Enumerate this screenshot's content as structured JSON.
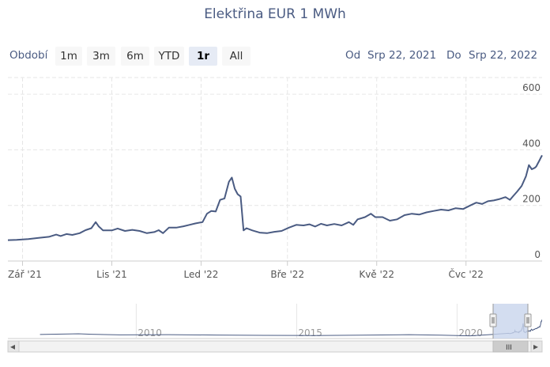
{
  "chart_data": {
    "type": "line",
    "title": "Elektřina EUR 1 MWh",
    "xlabel": "",
    "ylabel": "",
    "x_ticks": [
      "Zář '21",
      "Lis '21",
      "Led '22",
      "Bře '22",
      "Kvě '22",
      "Čvc '22"
    ],
    "y_ticks": [
      0,
      200,
      400,
      600
    ],
    "ylim": [
      0,
      660
    ],
    "xlim": [
      "2021-08-22",
      "2022-08-22"
    ],
    "grid": true,
    "series": [
      {
        "values": [
          [
            "2021-08-22",
            75
          ],
          [
            "2021-08-28",
            76
          ],
          [
            "2021-09-05",
            79
          ],
          [
            "2021-09-12",
            83
          ],
          [
            "2021-09-19",
            87
          ],
          [
            "2021-09-24",
            95
          ],
          [
            "2021-09-27",
            90
          ],
          [
            "2021-10-01",
            97
          ],
          [
            "2021-10-05",
            94
          ],
          [
            "2021-10-10",
            100
          ],
          [
            "2021-10-14",
            111
          ],
          [
            "2021-10-18",
            118
          ],
          [
            "2021-10-21",
            140
          ],
          [
            "2021-10-23",
            125
          ],
          [
            "2021-10-26",
            110
          ],
          [
            "2021-11-01",
            110
          ],
          [
            "2021-11-05",
            117
          ],
          [
            "2021-11-10",
            108
          ],
          [
            "2021-11-15",
            112
          ],
          [
            "2021-11-20",
            108
          ],
          [
            "2021-11-25",
            100
          ],
          [
            "2021-11-30",
            104
          ],
          [
            "2021-12-03",
            111
          ],
          [
            "2021-12-06",
            100
          ],
          [
            "2021-12-10",
            120
          ],
          [
            "2021-12-15",
            120
          ],
          [
            "2021-12-20",
            125
          ],
          [
            "2021-12-24",
            130
          ],
          [
            "2021-12-28",
            135
          ],
          [
            "2022-01-02",
            140
          ],
          [
            "2022-01-05",
            170
          ],
          [
            "2022-01-08",
            180
          ],
          [
            "2022-01-11",
            178
          ],
          [
            "2022-01-14",
            220
          ],
          [
            "2022-01-17",
            225
          ],
          [
            "2022-01-20",
            285
          ],
          [
            "2022-01-22",
            300
          ],
          [
            "2022-01-24",
            260
          ],
          [
            "2022-01-26",
            240
          ],
          [
            "2022-01-28",
            232
          ],
          [
            "2022-01-30",
            110
          ],
          [
            "2022-02-01",
            118
          ],
          [
            "2022-02-05",
            110
          ],
          [
            "2022-02-10",
            102
          ],
          [
            "2022-02-15",
            100
          ],
          [
            "2022-02-20",
            105
          ],
          [
            "2022-02-25",
            108
          ],
          [
            "2022-03-02",
            120
          ],
          [
            "2022-03-07",
            130
          ],
          [
            "2022-03-12",
            128
          ],
          [
            "2022-03-16",
            132
          ],
          [
            "2022-03-20",
            124
          ],
          [
            "2022-03-24",
            134
          ],
          [
            "2022-03-28",
            128
          ],
          [
            "2022-04-02",
            133
          ],
          [
            "2022-04-07",
            128
          ],
          [
            "2022-04-12",
            140
          ],
          [
            "2022-04-15",
            130
          ],
          [
            "2022-04-18",
            150
          ],
          [
            "2022-04-23",
            158
          ],
          [
            "2022-04-27",
            170
          ],
          [
            "2022-04-30",
            158
          ],
          [
            "2022-05-05",
            158
          ],
          [
            "2022-05-10",
            145
          ],
          [
            "2022-05-15",
            150
          ],
          [
            "2022-05-20",
            165
          ],
          [
            "2022-05-25",
            170
          ],
          [
            "2022-05-30",
            167
          ],
          [
            "2022-06-04",
            175
          ],
          [
            "2022-06-09",
            180
          ],
          [
            "2022-06-14",
            185
          ],
          [
            "2022-06-19",
            182
          ],
          [
            "2022-06-24",
            190
          ],
          [
            "2022-06-29",
            187
          ],
          [
            "2022-07-04",
            200
          ],
          [
            "2022-07-08",
            210
          ],
          [
            "2022-07-12",
            205
          ],
          [
            "2022-07-16",
            215
          ],
          [
            "2022-07-20",
            218
          ],
          [
            "2022-07-24",
            223
          ],
          [
            "2022-07-28",
            230
          ],
          [
            "2022-07-31",
            220
          ],
          [
            "2022-08-02",
            232
          ],
          [
            "2022-08-05",
            250
          ],
          [
            "2022-08-08",
            270
          ],
          [
            "2022-08-11",
            305
          ],
          [
            "2022-08-13",
            345
          ],
          [
            "2022-08-15",
            330
          ],
          [
            "2022-08-17",
            335
          ],
          [
            "2022-08-18",
            340
          ],
          [
            "2022-08-19",
            350
          ],
          [
            "2022-08-20",
            360
          ],
          [
            "2022-08-21",
            370
          ],
          [
            "2022-08-22",
            380
          ]
        ]
      }
    ]
  },
  "toolbar": {
    "range_label": "Období",
    "buttons": [
      "1m",
      "3m",
      "6m",
      "YTD",
      "1r",
      "All"
    ],
    "active": "1r",
    "from_label": "Od",
    "from_value": "Srp 22, 2021",
    "to_label": "Do",
    "to_value": "Srp 22, 2022"
  },
  "navigator": {
    "labels": [
      "2010",
      "2015",
      "2020"
    ],
    "scroll_left": "◂",
    "scroll_right": "▸",
    "grip": "III"
  }
}
